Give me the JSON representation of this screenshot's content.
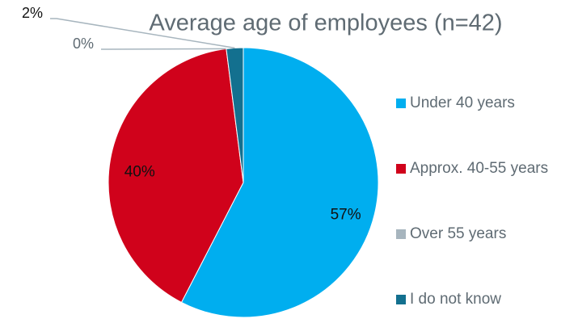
{
  "chart_data": {
    "type": "pie",
    "title": "Average age of employees (n=42)",
    "categories": [
      "Under 40 years",
      "Approx. 40-55 years",
      "Over 55 years",
      "I do not know"
    ],
    "values": [
      57,
      40,
      0,
      2
    ],
    "value_labels": [
      "57%",
      "40%",
      "0%",
      "2%"
    ],
    "colors": [
      "#00aeef",
      "#d0021b",
      "#a7b5be",
      "#13708f"
    ],
    "legend": "right"
  }
}
